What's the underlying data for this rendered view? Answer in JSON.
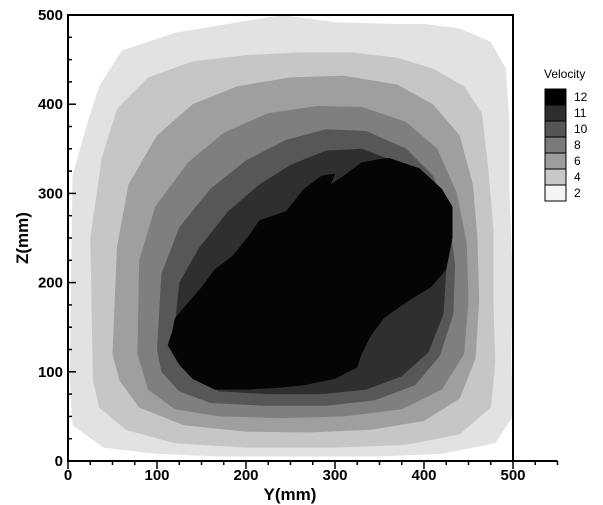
{
  "chart_data": {
    "type": "contour",
    "xlabel": "Y(mm)",
    "ylabel": "Z(mm)",
    "xlim": [
      0,
      550
    ],
    "ylim": [
      0,
      500
    ],
    "xticks": [
      "0",
      "100",
      "200",
      "300",
      "400",
      "500"
    ],
    "yticks": [
      "0",
      "100",
      "200",
      "300",
      "400",
      "500"
    ],
    "domain": {
      "x": [
        0,
        500
      ],
      "z": [
        0,
        500
      ]
    },
    "legend": {
      "title": "Velocity",
      "placement": "right",
      "levels": [
        {
          "label": "12",
          "value": 12,
          "color": "#000000"
        },
        {
          "label": "11",
          "value": 11,
          "color": "#2e2e2e"
        },
        {
          "label": "10",
          "value": 10,
          "color": "#555555"
        },
        {
          "label": "8",
          "value": 8,
          "color": "#7a7a7a"
        },
        {
          "label": "6",
          "value": 6,
          "color": "#9d9d9d"
        },
        {
          "label": "4",
          "value": 4,
          "color": "#c8c8c8"
        },
        {
          "label": "2",
          "value": 2,
          "color": "#f4f4f4"
        }
      ]
    },
    "contour_regions": [
      {
        "level": 2,
        "color": "#e2e2e2",
        "points": [
          [
            2,
            90
          ],
          [
            5,
            320
          ],
          [
            22,
            380
          ],
          [
            35,
            420
          ],
          [
            60,
            460
          ],
          [
            120,
            480
          ],
          [
            180,
            490
          ],
          [
            240,
            500
          ],
          [
            300,
            492
          ],
          [
            360,
            490
          ],
          [
            400,
            490
          ],
          [
            440,
            485
          ],
          [
            475,
            470
          ],
          [
            492,
            440
          ],
          [
            496,
            380
          ],
          [
            496,
            300
          ],
          [
            500,
            200
          ],
          [
            498,
            120
          ],
          [
            500,
            50
          ],
          [
            480,
            20
          ],
          [
            420,
            8
          ],
          [
            350,
            5
          ],
          [
            250,
            5
          ],
          [
            170,
            5
          ],
          [
            100,
            8
          ],
          [
            40,
            15
          ],
          [
            5,
            40
          ]
        ]
      },
      {
        "level": 4,
        "color": "#c6c6c6",
        "points": [
          [
            28,
            90
          ],
          [
            25,
            250
          ],
          [
            38,
            340
          ],
          [
            55,
            395
          ],
          [
            90,
            430
          ],
          [
            140,
            448
          ],
          [
            200,
            455
          ],
          [
            260,
            458
          ],
          [
            320,
            458
          ],
          [
            370,
            452
          ],
          [
            410,
            440
          ],
          [
            445,
            420
          ],
          [
            465,
            390
          ],
          [
            472,
            330
          ],
          [
            478,
            260
          ],
          [
            478,
            180
          ],
          [
            480,
            110
          ],
          [
            475,
            60
          ],
          [
            440,
            30
          ],
          [
            380,
            18
          ],
          [
            300,
            15
          ],
          [
            200,
            15
          ],
          [
            120,
            20
          ],
          [
            65,
            35
          ],
          [
            35,
            60
          ]
        ]
      },
      {
        "level": 6,
        "color": "#9f9f9f",
        "points": [
          [
            50,
            120
          ],
          [
            55,
            240
          ],
          [
            68,
            310
          ],
          [
            100,
            365
          ],
          [
            140,
            400
          ],
          [
            190,
            420
          ],
          [
            250,
            430
          ],
          [
            310,
            432
          ],
          [
            370,
            422
          ],
          [
            410,
            400
          ],
          [
            440,
            365
          ],
          [
            455,
            310
          ],
          [
            460,
            250
          ],
          [
            462,
            180
          ],
          [
            458,
            115
          ],
          [
            440,
            70
          ],
          [
            400,
            45
          ],
          [
            340,
            35
          ],
          [
            270,
            32
          ],
          [
            200,
            33
          ],
          [
            130,
            40
          ],
          [
            80,
            60
          ],
          [
            58,
            90
          ]
        ]
      },
      {
        "level": 8,
        "color": "#7f7f7f",
        "points": [
          [
            78,
            120
          ],
          [
            80,
            225
          ],
          [
            98,
            285
          ],
          [
            135,
            335
          ],
          [
            175,
            368
          ],
          [
            225,
            390
          ],
          [
            280,
            398
          ],
          [
            330,
            397
          ],
          [
            380,
            380
          ],
          [
            415,
            350
          ],
          [
            437,
            300
          ],
          [
            448,
            245
          ],
          [
            450,
            180
          ],
          [
            445,
            120
          ],
          [
            420,
            80
          ],
          [
            375,
            58
          ],
          [
            310,
            50
          ],
          [
            240,
            48
          ],
          [
            170,
            50
          ],
          [
            120,
            58
          ],
          [
            90,
            80
          ]
        ]
      },
      {
        "level": 10,
        "color": "#575757",
        "points": [
          [
            100,
            125
          ],
          [
            105,
            210
          ],
          [
            125,
            262
          ],
          [
            160,
            305
          ],
          [
            200,
            337
          ],
          [
            245,
            360
          ],
          [
            290,
            372
          ],
          [
            335,
            370
          ],
          [
            380,
            350
          ],
          [
            410,
            320
          ],
          [
            428,
            275
          ],
          [
            435,
            220
          ],
          [
            433,
            165
          ],
          [
            418,
            118
          ],
          [
            390,
            85
          ],
          [
            345,
            68
          ],
          [
            290,
            62
          ],
          [
            220,
            62
          ],
          [
            160,
            65
          ],
          [
            125,
            78
          ],
          [
            105,
            100
          ]
        ]
      },
      {
        "level": 11,
        "color": "#2f2f2f",
        "points": [
          [
            118,
            130
          ],
          [
            125,
            200
          ],
          [
            148,
            240
          ],
          [
            180,
            280
          ],
          [
            215,
            310
          ],
          [
            250,
            332
          ],
          [
            290,
            348
          ],
          [
            330,
            350
          ],
          [
            370,
            335
          ],
          [
            400,
            305
          ],
          [
            420,
            265
          ],
          [
            425,
            215
          ],
          [
            422,
            165
          ],
          [
            405,
            122
          ],
          [
            375,
            95
          ],
          [
            335,
            80
          ],
          [
            285,
            75
          ],
          [
            225,
            75
          ],
          [
            170,
            78
          ],
          [
            138,
            95
          ],
          [
            122,
            112
          ]
        ]
      },
      {
        "level": 12,
        "color": "#050505",
        "points": [
          [
            112,
            130
          ],
          [
            117,
            145
          ],
          [
            120,
            160
          ],
          [
            150,
            195
          ],
          [
            165,
            215
          ],
          [
            185,
            230
          ],
          [
            205,
            255
          ],
          [
            215,
            270
          ],
          [
            245,
            280
          ],
          [
            265,
            305
          ],
          [
            285,
            320
          ],
          [
            300,
            322
          ],
          [
            295,
            310
          ],
          [
            310,
            320
          ],
          [
            330,
            335
          ],
          [
            360,
            340
          ],
          [
            395,
            328
          ],
          [
            420,
            305
          ],
          [
            432,
            285
          ],
          [
            432,
            250
          ],
          [
            425,
            215
          ],
          [
            408,
            195
          ],
          [
            380,
            178
          ],
          [
            355,
            160
          ],
          [
            340,
            140
          ],
          [
            330,
            120
          ],
          [
            325,
            105
          ],
          [
            300,
            92
          ],
          [
            265,
            85
          ],
          [
            235,
            82
          ],
          [
            200,
            80
          ],
          [
            165,
            80
          ],
          [
            140,
            92
          ],
          [
            125,
            108
          ]
        ]
      }
    ]
  }
}
